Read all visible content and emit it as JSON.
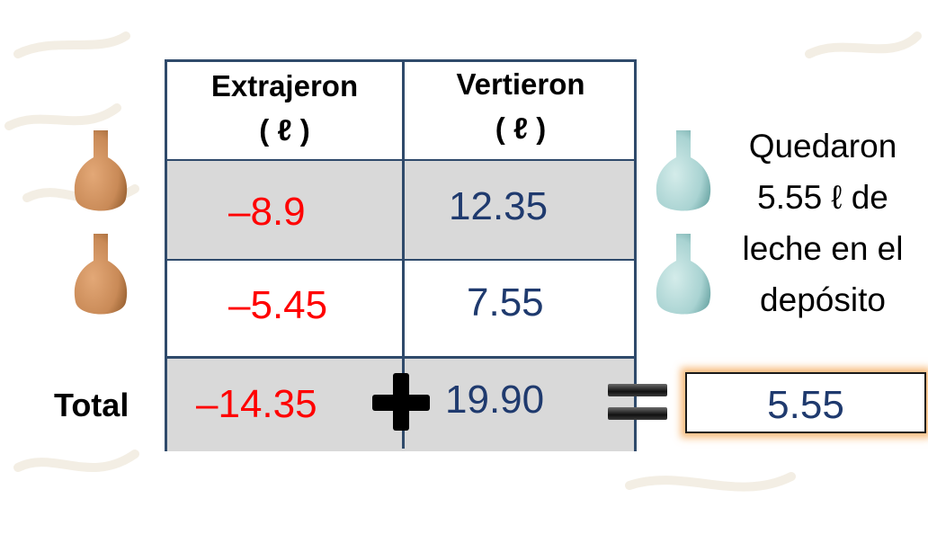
{
  "table": {
    "headers": [
      {
        "title": "Extrajeron",
        "unit": "( ℓ )"
      },
      {
        "title": "Vertieron",
        "unit": "( ℓ )"
      }
    ],
    "rows": [
      {
        "extrajeron": "–8.9",
        "vertieron": "12.35"
      },
      {
        "extrajeron": "–5.45",
        "vertieron": "7.55"
      }
    ],
    "total": {
      "label": "Total",
      "extrajeron": "–14.35",
      "vertieron": "19.90"
    }
  },
  "result": "5.55",
  "note": {
    "line1": "Quedaron",
    "line2": "5.55 ℓ de",
    "line3": "leche en el",
    "line4": "depósito"
  },
  "colors": {
    "negative": "#ff0000",
    "positive": "#1f3a6e",
    "table_border": "#2f4a6b",
    "shaded_row": "#d9d9d9",
    "brown_vase": "#c98a57",
    "teal_vase": "#a9d3d2",
    "result_glow": "#f4a450"
  },
  "icons": [
    "brown-vase-icon",
    "teal-vase-icon",
    "plus-icon",
    "equals-icon"
  ]
}
